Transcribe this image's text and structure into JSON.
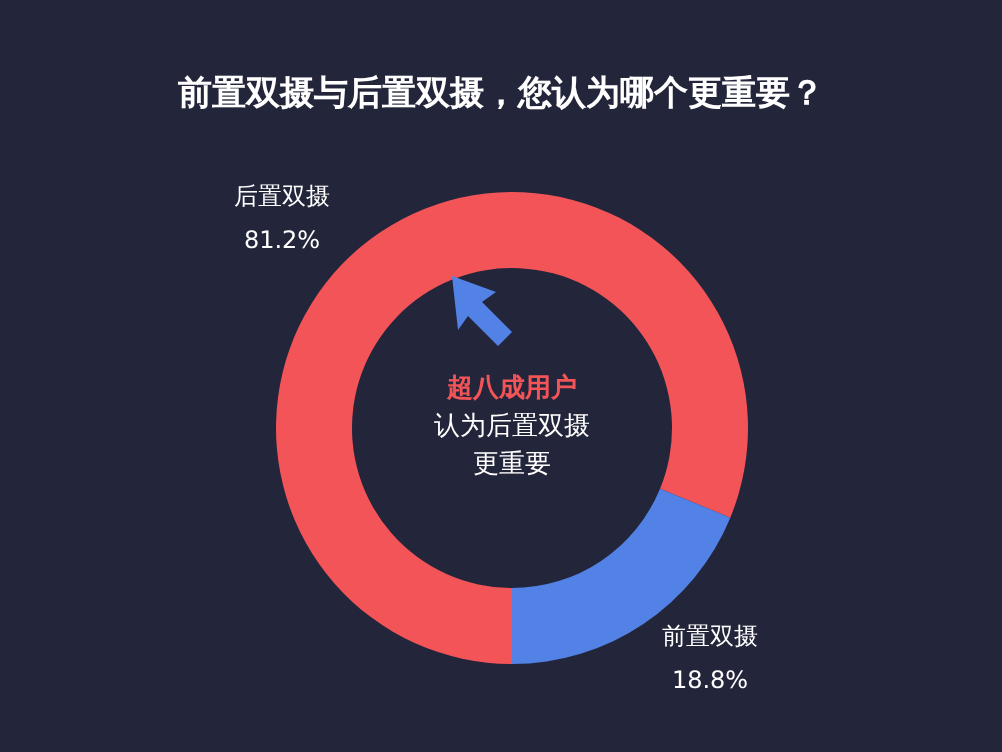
{
  "chart_data": {
    "type": "donut",
    "title": "前置双摄与后置双摄，您认为哪个更重要？",
    "categories": [
      "后置双摄",
      "前置双摄"
    ],
    "values": [
      81.2,
      18.8
    ],
    "colors": [
      "#f25458",
      "#5282e6"
    ],
    "value_labels": [
      "81.2%",
      "18.8%"
    ],
    "annotations": [
      "超八成用户",
      "认为后置双摄",
      "更重要"
    ]
  }
}
